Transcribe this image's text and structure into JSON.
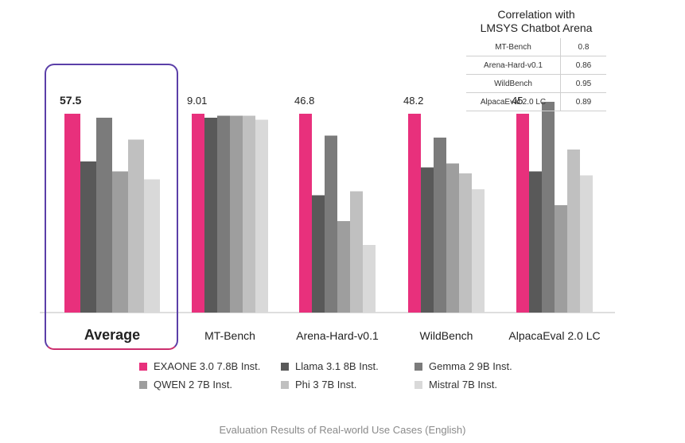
{
  "colors": {
    "highlight_border_avg": "#5b3fa8",
    "highlight_border_pink": "#cc2f6e",
    "axis": "#bdbdbd"
  },
  "chart_data": {
    "type": "bar",
    "categories": [
      "Average",
      "MT-Bench",
      "Arena-Hard-v0.1",
      "WildBench",
      "AlpacaEval 2.0 LC"
    ],
    "highlighted_category": "Average",
    "series": [
      {
        "name": "EXAONE 3.0 7.8B Inst.",
        "color": "#e8307c",
        "values": [
          100,
          100,
          100,
          100,
          100
        ]
      },
      {
        "name": "Llama 3.1 8B Inst.",
        "color": "#595959",
        "values": [
          76,
          98,
          59,
          73,
          71
        ]
      },
      {
        "name": "Gemma 2 9B Inst.",
        "color": "#7b7b7b",
        "values": [
          98,
          99,
          89,
          88,
          106
        ]
      },
      {
        "name": "QWEN 2 7B Inst.",
        "color": "#9e9e9e",
        "values": [
          71,
          99,
          46,
          75,
          54
        ]
      },
      {
        "name": "Phi 3 7B Inst.",
        "color": "#c0c0c0",
        "values": [
          87,
          99,
          61,
          70,
          82
        ]
      },
      {
        "name": "Mistral 7B Inst.",
        "color": "#d9d9d9",
        "values": [
          67,
          97,
          34,
          62,
          69
        ]
      }
    ],
    "data_labels": [
      "57.5",
      "9.01",
      "46.8",
      "48.2",
      "45"
    ],
    "ylim": [
      0,
      130
    ],
    "xlabel": "",
    "ylabel": "",
    "legend_position": "bottom"
  },
  "correlation": {
    "title_line1": "Correlation with",
    "title_line2": "LMSYS Chatbot Arena",
    "rows": [
      {
        "name": "MT-Bench",
        "value": "0.8"
      },
      {
        "name": "Arena-Hard-v0.1",
        "value": "0.86"
      },
      {
        "name": "WildBench",
        "value": "0.95"
      },
      {
        "name": "AlpacaEval 2.0 LC",
        "value": "0.89"
      }
    ]
  },
  "caption": "Evaluation Results of Real-world Use Cases (English)"
}
